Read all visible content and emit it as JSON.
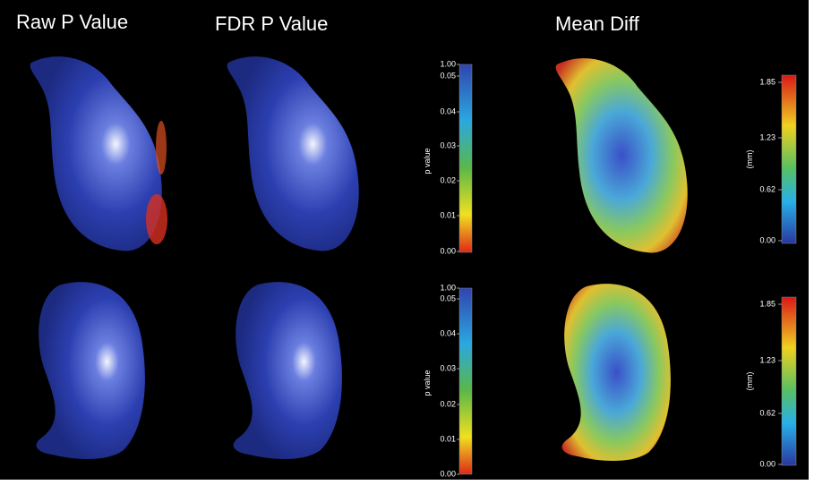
{
  "titles": [
    "Raw P Value",
    "FDR P Value",
    "Mean Diff"
  ],
  "pvalue_bar": {
    "label": "p value",
    "ticks": [
      "1.00",
      "0.05",
      "0.04",
      "0.03",
      "0.02",
      "0.01",
      "0.00"
    ]
  },
  "mean_diff_bar": {
    "label": "(mm)",
    "ticks": [
      "1.85",
      "1.23",
      "0.62",
      "0.00"
    ]
  }
}
